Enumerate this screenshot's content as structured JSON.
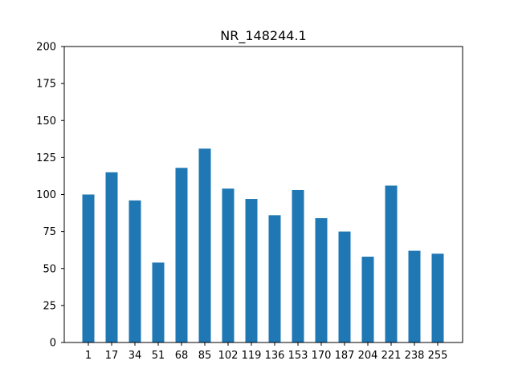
{
  "chart_data": {
    "type": "bar",
    "title": "NR_148244.1",
    "xlabel": "",
    "ylabel": "",
    "categories": [
      "1",
      "17",
      "34",
      "51",
      "68",
      "85",
      "102",
      "119",
      "136",
      "153",
      "170",
      "187",
      "204",
      "221",
      "238",
      "255"
    ],
    "values": [
      100,
      115,
      96,
      54,
      118,
      131,
      104,
      97,
      86,
      103,
      84,
      75,
      58,
      106,
      62,
      60
    ],
    "ylim": [
      0,
      200
    ],
    "yticks": [
      0,
      25,
      50,
      75,
      100,
      125,
      150,
      175,
      200
    ],
    "grid": false,
    "legend": "none",
    "bar_color": "#1f77b4"
  }
}
